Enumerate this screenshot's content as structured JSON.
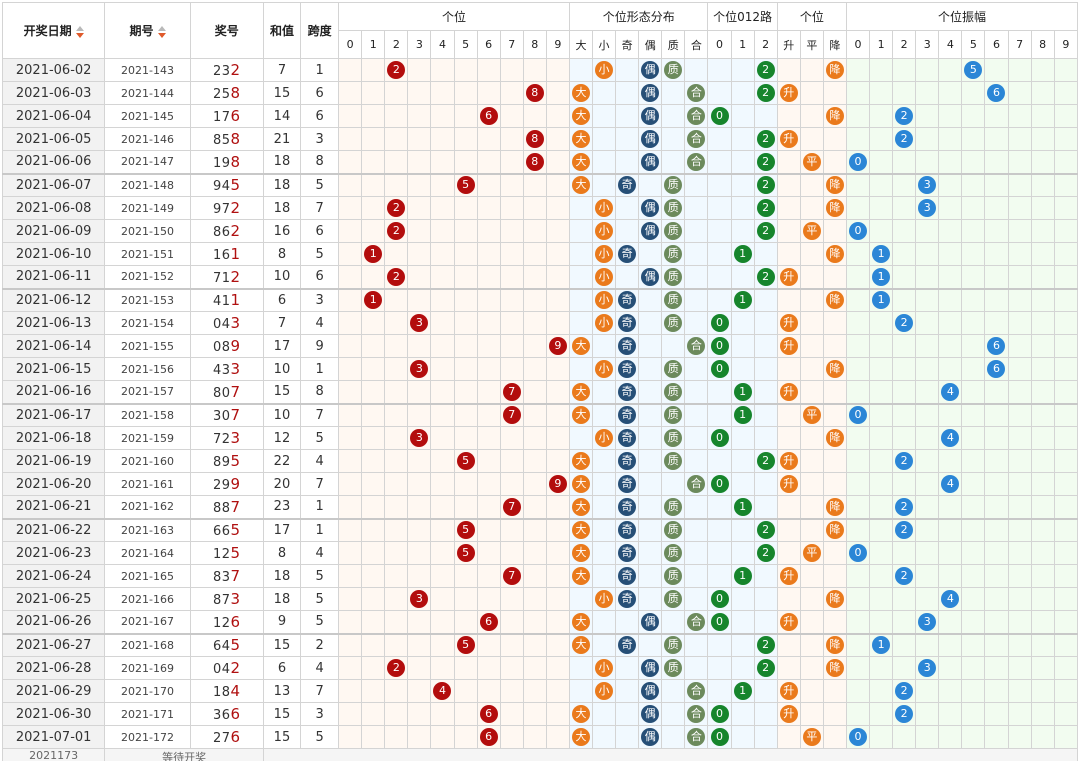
{
  "header": {
    "date_col": "开奖日期",
    "issue_col": "期号",
    "number_col": "奖号",
    "sum_col": "和值",
    "span_col": "跨度",
    "digit_group": "个位",
    "shape_group": "个位形态分布",
    "route_group": "个位012路",
    "trend_group": "个位",
    "amp_group": "个位振幅",
    "digits": [
      "0",
      "1",
      "2",
      "3",
      "4",
      "5",
      "6",
      "7",
      "8",
      "9"
    ],
    "shape_labels": [
      "大",
      "小",
      "奇",
      "偶",
      "质",
      "合"
    ],
    "route_labels": [
      "0",
      "1",
      "2"
    ],
    "trend_labels": [
      "升",
      "平",
      "降"
    ]
  },
  "colors": {
    "digit_ball": "#b30d0d",
    "shape_ball": "#ea7a1c",
    "odd_even_ball": "#264f77",
    "prime_ball": "#6c8a5c",
    "route_ball": "#16852c",
    "amp_ball": "#2b86d6"
  },
  "rows": [
    {
      "date": "2021-06-02",
      "issue": "2021-143",
      "prefix": "23",
      "last": "2",
      "sum": "7",
      "span": "1",
      "d": 2,
      "big": false,
      "odd": false,
      "prime": true,
      "route": 2,
      "trend": "降",
      "amp": 5
    },
    {
      "date": "2021-06-03",
      "issue": "2021-144",
      "prefix": "25",
      "last": "8",
      "sum": "15",
      "span": "6",
      "d": 8,
      "big": true,
      "odd": false,
      "prime": false,
      "route": 2,
      "trend": "升",
      "amp": 6
    },
    {
      "date": "2021-06-04",
      "issue": "2021-145",
      "prefix": "17",
      "last": "6",
      "sum": "14",
      "span": "6",
      "d": 6,
      "big": true,
      "odd": false,
      "prime": false,
      "route": 0,
      "trend": "降",
      "amp": 2
    },
    {
      "date": "2021-06-05",
      "issue": "2021-146",
      "prefix": "85",
      "last": "8",
      "sum": "21",
      "span": "3",
      "d": 8,
      "big": true,
      "odd": false,
      "prime": false,
      "route": 2,
      "trend": "升",
      "amp": 2
    },
    {
      "date": "2021-06-06",
      "issue": "2021-147",
      "prefix": "19",
      "last": "8",
      "sum": "18",
      "span": "8",
      "d": 8,
      "big": true,
      "odd": false,
      "prime": false,
      "route": 2,
      "trend": "平",
      "amp": 0
    },
    {
      "date": "2021-06-07",
      "issue": "2021-148",
      "prefix": "94",
      "last": "5",
      "sum": "18",
      "span": "5",
      "d": 5,
      "big": true,
      "odd": true,
      "prime": true,
      "route": 2,
      "trend": "降",
      "amp": 3
    },
    {
      "date": "2021-06-08",
      "issue": "2021-149",
      "prefix": "97",
      "last": "2",
      "sum": "18",
      "span": "7",
      "d": 2,
      "big": false,
      "odd": false,
      "prime": true,
      "route": 2,
      "trend": "降",
      "amp": 3
    },
    {
      "date": "2021-06-09",
      "issue": "2021-150",
      "prefix": "86",
      "last": "2",
      "sum": "16",
      "span": "6",
      "d": 2,
      "big": false,
      "odd": false,
      "prime": true,
      "route": 2,
      "trend": "平",
      "amp": 0
    },
    {
      "date": "2021-06-10",
      "issue": "2021-151",
      "prefix": "16",
      "last": "1",
      "sum": "8",
      "span": "5",
      "d": 1,
      "big": false,
      "odd": true,
      "prime": true,
      "route": 1,
      "trend": "降",
      "amp": 1
    },
    {
      "date": "2021-06-11",
      "issue": "2021-152",
      "prefix": "71",
      "last": "2",
      "sum": "10",
      "span": "6",
      "d": 2,
      "big": false,
      "odd": false,
      "prime": true,
      "route": 2,
      "trend": "升",
      "amp": 1
    },
    {
      "date": "2021-06-12",
      "issue": "2021-153",
      "prefix": "41",
      "last": "1",
      "sum": "6",
      "span": "3",
      "d": 1,
      "big": false,
      "odd": true,
      "prime": true,
      "route": 1,
      "trend": "降",
      "amp": 1
    },
    {
      "date": "2021-06-13",
      "issue": "2021-154",
      "prefix": "04",
      "last": "3",
      "sum": "7",
      "span": "4",
      "d": 3,
      "big": false,
      "odd": true,
      "prime": true,
      "route": 0,
      "trend": "升",
      "amp": 2
    },
    {
      "date": "2021-06-14",
      "issue": "2021-155",
      "prefix": "08",
      "last": "9",
      "sum": "17",
      "span": "9",
      "d": 9,
      "big": true,
      "odd": true,
      "prime": false,
      "route": 0,
      "trend": "升",
      "amp": 6
    },
    {
      "date": "2021-06-15",
      "issue": "2021-156",
      "prefix": "43",
      "last": "3",
      "sum": "10",
      "span": "1",
      "d": 3,
      "big": false,
      "odd": true,
      "prime": true,
      "route": 0,
      "trend": "降",
      "amp": 6
    },
    {
      "date": "2021-06-16",
      "issue": "2021-157",
      "prefix": "80",
      "last": "7",
      "sum": "15",
      "span": "8",
      "d": 7,
      "big": true,
      "odd": true,
      "prime": true,
      "route": 1,
      "trend": "升",
      "amp": 4
    },
    {
      "date": "2021-06-17",
      "issue": "2021-158",
      "prefix": "30",
      "last": "7",
      "sum": "10",
      "span": "7",
      "d": 7,
      "big": true,
      "odd": true,
      "prime": true,
      "route": 1,
      "trend": "平",
      "amp": 0
    },
    {
      "date": "2021-06-18",
      "issue": "2021-159",
      "prefix": "72",
      "last": "3",
      "sum": "12",
      "span": "5",
      "d": 3,
      "big": false,
      "odd": true,
      "prime": true,
      "route": 0,
      "trend": "降",
      "amp": 4
    },
    {
      "date": "2021-06-19",
      "issue": "2021-160",
      "prefix": "89",
      "last": "5",
      "sum": "22",
      "span": "4",
      "d": 5,
      "big": true,
      "odd": true,
      "prime": true,
      "route": 2,
      "trend": "升",
      "amp": 2
    },
    {
      "date": "2021-06-20",
      "issue": "2021-161",
      "prefix": "29",
      "last": "9",
      "sum": "20",
      "span": "7",
      "d": 9,
      "big": true,
      "odd": true,
      "prime": false,
      "route": 0,
      "trend": "升",
      "amp": 4
    },
    {
      "date": "2021-06-21",
      "issue": "2021-162",
      "prefix": "88",
      "last": "7",
      "sum": "23",
      "span": "1",
      "d": 7,
      "big": true,
      "odd": true,
      "prime": true,
      "route": 1,
      "trend": "降",
      "amp": 2
    },
    {
      "date": "2021-06-22",
      "issue": "2021-163",
      "prefix": "66",
      "last": "5",
      "sum": "17",
      "span": "1",
      "d": 5,
      "big": true,
      "odd": true,
      "prime": true,
      "route": 2,
      "trend": "降",
      "amp": 2
    },
    {
      "date": "2021-06-23",
      "issue": "2021-164",
      "prefix": "12",
      "last": "5",
      "sum": "8",
      "span": "4",
      "d": 5,
      "big": true,
      "odd": true,
      "prime": true,
      "route": 2,
      "trend": "平",
      "amp": 0
    },
    {
      "date": "2021-06-24",
      "issue": "2021-165",
      "prefix": "83",
      "last": "7",
      "sum": "18",
      "span": "5",
      "d": 7,
      "big": true,
      "odd": true,
      "prime": true,
      "route": 1,
      "trend": "升",
      "amp": 2
    },
    {
      "date": "2021-06-25",
      "issue": "2021-166",
      "prefix": "87",
      "last": "3",
      "sum": "18",
      "span": "5",
      "d": 3,
      "big": false,
      "odd": true,
      "prime": true,
      "route": 0,
      "trend": "降",
      "amp": 4
    },
    {
      "date": "2021-06-26",
      "issue": "2021-167",
      "prefix": "12",
      "last": "6",
      "sum": "9",
      "span": "5",
      "d": 6,
      "big": true,
      "odd": false,
      "prime": false,
      "route": 0,
      "trend": "升",
      "amp": 3
    },
    {
      "date": "2021-06-27",
      "issue": "2021-168",
      "prefix": "64",
      "last": "5",
      "sum": "15",
      "span": "2",
      "d": 5,
      "big": true,
      "odd": true,
      "prime": true,
      "route": 2,
      "trend": "降",
      "amp": 1
    },
    {
      "date": "2021-06-28",
      "issue": "2021-169",
      "prefix": "04",
      "last": "2",
      "sum": "6",
      "span": "4",
      "d": 2,
      "big": false,
      "odd": false,
      "prime": true,
      "route": 2,
      "trend": "降",
      "amp": 3
    },
    {
      "date": "2021-06-29",
      "issue": "2021-170",
      "prefix": "18",
      "last": "4",
      "sum": "13",
      "span": "7",
      "d": 4,
      "big": false,
      "odd": false,
      "prime": false,
      "route": 1,
      "trend": "升",
      "amp": 2
    },
    {
      "date": "2021-06-30",
      "issue": "2021-171",
      "prefix": "36",
      "last": "6",
      "sum": "15",
      "span": "3",
      "d": 6,
      "big": true,
      "odd": false,
      "prime": false,
      "route": 0,
      "trend": "升",
      "amp": 2
    },
    {
      "date": "2021-07-01",
      "issue": "2021-172",
      "prefix": "27",
      "last": "6",
      "sum": "15",
      "span": "5",
      "d": 6,
      "big": true,
      "odd": false,
      "prime": false,
      "route": 0,
      "trend": "平",
      "amp": 0
    }
  ],
  "pending": {
    "issue": "2021173",
    "text": "等待开奖"
  }
}
